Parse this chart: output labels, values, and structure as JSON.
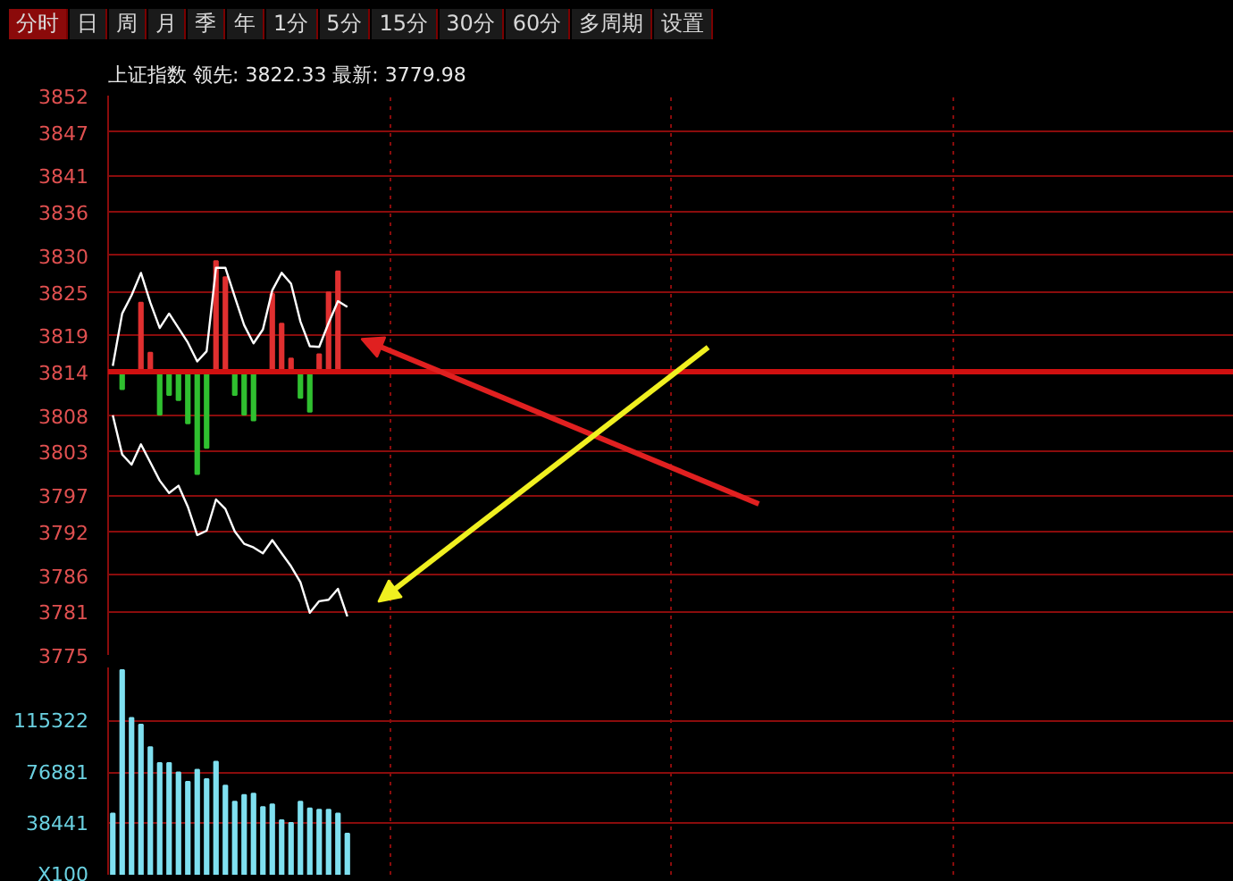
{
  "chart_data": [
    {
      "type": "line",
      "title": "上证指数 领先: 3822.33 最新: 3779.98",
      "annotations": [
        "分时",
        "日",
        "周",
        "月",
        "季",
        "年",
        "1分",
        "5分",
        "15分",
        "30分",
        "60分",
        "多周期",
        "设置"
      ],
      "categories": [
        null,
        null,
        null,
        null,
        null,
        null,
        null,
        null,
        null,
        null,
        null,
        null,
        null,
        null,
        null,
        null,
        null,
        null,
        null,
        null,
        null,
        null,
        null,
        null,
        null,
        null,
        null,
        null,
        null,
        null,
        null,
        null,
        null,
        null,
        null,
        null,
        null,
        null,
        null,
        null,
        null,
        null,
        null,
        null,
        null,
        null,
        null,
        null,
        null,
        null,
        null,
        null,
        null,
        null,
        null,
        null,
        null,
        null,
        null,
        null,
        null,
        null,
        null,
        null,
        null,
        null,
        null,
        null,
        null,
        null,
        null,
        null,
        null,
        null,
        null,
        null,
        null,
        null,
        null,
        null,
        null,
        null,
        null,
        null,
        null,
        null,
        null,
        null,
        null,
        null,
        null,
        null,
        null,
        null,
        null,
        null,
        null,
        null,
        null,
        null,
        null,
        null,
        null,
        null,
        null,
        null,
        null,
        null,
        null,
        null,
        null,
        null,
        null,
        null,
        null,
        null,
        null,
        null,
        null,
        null
      ],
      "ylim": [
        3775,
        3852
      ],
      "yticks": [
        3775,
        3781,
        3786,
        3792,
        3797,
        3803,
        3808,
        3814,
        3819,
        3825,
        3830,
        3836,
        3841,
        3847,
        3852
      ],
      "grid": true,
      "tick_labels": "y",
      "ref_lines": [
        {
          "axis": "y",
          "value": 3814,
          "label": null,
          "color": "#d01010"
        }
      ],
      "series": [
        {
          "type": "bar",
          "base": [
            null,
            3814,
            null,
            3814,
            3814,
            3814,
            3814,
            3814,
            3814,
            3814,
            3814,
            3814,
            3814,
            3814,
            3814,
            3814,
            null,
            3814,
            3814,
            3814,
            3814,
            3814,
            3814,
            3814,
            3814,
            null,
            null,
            null,
            null,
            null,
            null,
            null,
            null,
            null,
            null,
            null,
            null,
            null,
            null,
            null,
            null,
            null,
            null,
            null,
            null,
            null,
            null,
            null,
            null,
            null,
            null,
            null,
            null,
            null,
            null,
            null,
            null,
            null,
            null,
            null,
            null,
            null,
            null,
            null,
            null,
            null,
            null,
            null,
            null,
            null,
            null,
            null,
            null,
            null,
            null,
            null,
            null,
            null,
            null,
            null,
            null,
            null,
            null,
            null,
            null,
            null,
            null,
            null,
            null,
            null,
            null,
            null,
            null,
            null,
            null,
            null,
            null,
            null,
            null,
            null,
            null,
            null,
            null,
            null,
            null,
            null,
            null,
            null,
            null,
            null,
            null,
            null,
            null,
            null,
            null,
            null,
            null,
            null,
            null,
            null
          ],
          "values": [
            null,
            -2.4,
            null,
            9.5,
            2.6,
            -5.9,
            -3.2,
            -3.9,
            -7.1,
            -14.1,
            -10.5,
            15.2,
            13,
            -3.2,
            -5.9,
            -6.7,
            null,
            10.7,
            6.6,
            1.8,
            -3.6,
            -5.5,
            2.4,
            10.9,
            13.8,
            null,
            null,
            null,
            null,
            null,
            null,
            null,
            null,
            null,
            null,
            null,
            null,
            null,
            null,
            null,
            null,
            null,
            null,
            null,
            null,
            null,
            null,
            null,
            null,
            null,
            null,
            null,
            null,
            null,
            null,
            null,
            null,
            null,
            null,
            null,
            null,
            null,
            null,
            null,
            null,
            null,
            null,
            null,
            null,
            null,
            null,
            null,
            null,
            null,
            null,
            null,
            null,
            null,
            null,
            null,
            null,
            null,
            null,
            null,
            null,
            null,
            null,
            null,
            null,
            null,
            null,
            null,
            null,
            null,
            null,
            null,
            null,
            null,
            null,
            null,
            null,
            null,
            null,
            null,
            null,
            null,
            null,
            null,
            null,
            null,
            null,
            null,
            null,
            null,
            null,
            null,
            null,
            null,
            null,
            null
          ],
          "colors": [
            null,
            "#30c030",
            null,
            "#e03030",
            "#e03030",
            "#30c030",
            "#30c030",
            "#30c030",
            "#30c030",
            "#30c030",
            "#30c030",
            "#e03030",
            "#e03030",
            "#30c030",
            "#30c030",
            "#30c030",
            null,
            "#e03030",
            "#e03030",
            "#e03030",
            "#30c030",
            "#30c030",
            "#e03030",
            "#e03030",
            "#e03030",
            null,
            null,
            null,
            null,
            null,
            null,
            null,
            null,
            null,
            null,
            null,
            null,
            null,
            null,
            null,
            null,
            null,
            null,
            null,
            null,
            null,
            null,
            null,
            null,
            null,
            null,
            null,
            null,
            null,
            null,
            null,
            null,
            null,
            null,
            null,
            null,
            null,
            null,
            null,
            null,
            null,
            null,
            null,
            null,
            null,
            null,
            null,
            null,
            null,
            null,
            null,
            null,
            null,
            null,
            null,
            null,
            null,
            null,
            null,
            null,
            null,
            null,
            null,
            null,
            null,
            null,
            null,
            null,
            null,
            null,
            null,
            null,
            null,
            null,
            null,
            null,
            null,
            null,
            null,
            null,
            null,
            null,
            null,
            null,
            null,
            null,
            null,
            null,
            null,
            null,
            null,
            null,
            null,
            null,
            null
          ]
        },
        {
          "type": "line",
          "color": "#ffffff",
          "values": [
            3814.8,
            3822,
            3824.5,
            3827.6,
            3823.5,
            3820,
            3822,
            3820,
            3818,
            3815.4,
            3816.8,
            3828.3,
            3828.3,
            3824.3,
            3820.4,
            3817.9,
            3819.8,
            3825.2,
            3827.6,
            3826.1,
            3820.9,
            3817.5,
            3817.4,
            3820.7,
            3823.7,
            3822.9,
            null,
            null,
            null,
            null,
            null,
            null,
            null,
            null,
            null,
            null,
            null,
            null,
            null,
            null,
            null,
            null,
            null,
            null,
            null,
            null,
            null,
            null,
            null,
            null,
            null,
            null,
            null,
            null,
            null,
            null,
            null,
            null,
            null,
            null,
            null,
            null,
            null,
            null,
            null,
            null,
            null,
            null,
            null,
            null,
            null,
            null,
            null,
            null,
            null,
            null,
            null,
            null,
            null,
            null,
            null,
            null,
            null,
            null,
            null,
            null,
            null,
            null,
            null,
            null,
            null,
            null,
            null,
            null,
            null,
            null,
            null,
            null,
            null,
            null,
            null,
            null,
            null,
            null,
            null,
            null,
            null,
            null,
            null,
            null,
            null,
            null,
            null,
            null,
            null,
            null,
            null,
            null,
            null,
            null
          ]
        },
        {
          "type": "line",
          "color": "#ffffff",
          "values": [
            3808,
            3802.6,
            3801.2,
            3804,
            3801.5,
            3799,
            3797.3,
            3798.3,
            3795.4,
            3791.5,
            3792.1,
            3796.4,
            3795.1,
            3792,
            3790.3,
            3789.8,
            3789,
            3790.8,
            3789,
            3787.2,
            3785,
            3780.8,
            3782.4,
            3782.6,
            3784.1,
            3780.3,
            null,
            null,
            null,
            null,
            null,
            null,
            null,
            null,
            null,
            null,
            null,
            null,
            null,
            null,
            null,
            null,
            null,
            null,
            null,
            null,
            null,
            null,
            null,
            null,
            null,
            null,
            null,
            null,
            null,
            null,
            null,
            null,
            null,
            null,
            null,
            null,
            null,
            null,
            null,
            null,
            null,
            null,
            null,
            null,
            null,
            null,
            null,
            null,
            null,
            null,
            null,
            null,
            null,
            null,
            null,
            null,
            null,
            null,
            null,
            null,
            null,
            null,
            null,
            null,
            null,
            null,
            null,
            null,
            null,
            null,
            null,
            null,
            null,
            null,
            null,
            null,
            null,
            null,
            null,
            null,
            null,
            null,
            null,
            null,
            null,
            null,
            null,
            null,
            null,
            null,
            null,
            null,
            null,
            null
          ]
        }
      ]
    },
    {
      "type": "bar",
      "categories": [
        null,
        null,
        null,
        null,
        null,
        null,
        null,
        null,
        null,
        null,
        null,
        null,
        null,
        null,
        null,
        null,
        null,
        null,
        null,
        null,
        null,
        null,
        null,
        null,
        null,
        null,
        null,
        null,
        null,
        null,
        null,
        null,
        null,
        null,
        null,
        null,
        null,
        null,
        null,
        null,
        null,
        null,
        null,
        null,
        null,
        null,
        null,
        null,
        null,
        null,
        null,
        null,
        null,
        null,
        null,
        null,
        null,
        null,
        null,
        null,
        null,
        null,
        null,
        null,
        null,
        null,
        null,
        null,
        null,
        null,
        null,
        null,
        null,
        null,
        null,
        null,
        null,
        null,
        null,
        null,
        null,
        null,
        null,
        null,
        null,
        null,
        null,
        null,
        null,
        null,
        null,
        null,
        null,
        null,
        null,
        null,
        null,
        null,
        null,
        null,
        null,
        null,
        null,
        null,
        null,
        null,
        null,
        null,
        null,
        null,
        null,
        null,
        null,
        null,
        null,
        null,
        null,
        null,
        null,
        null
      ],
      "ylim": [
        0,
        156000
      ],
      "yticks": [
        {
          "value": 0,
          "label": "X100"
        },
        38441,
        76881,
        115322
      ],
      "grid": true,
      "tick_labels": "y",
      "color": "#7fe0f0",
      "values": [
        46000,
        154000,
        118000,
        113000,
        96000,
        84000,
        84000,
        77000,
        70000,
        79000,
        72000,
        85000,
        67000,
        55000,
        60000,
        61000,
        51000,
        53000,
        41000,
        39000,
        55000,
        50000,
        49000,
        49000,
        46000,
        31000,
        null,
        null,
        null,
        null,
        null,
        null,
        null,
        null,
        null,
        null,
        null,
        null,
        null,
        null,
        null,
        null,
        null,
        null,
        null,
        null,
        null,
        null,
        null,
        null,
        null,
        null,
        null,
        null,
        null,
        null,
        null,
        null,
        null,
        null,
        null,
        null,
        null,
        null,
        null,
        null,
        null,
        null,
        null,
        null,
        null,
        null,
        null,
        null,
        null,
        null,
        null,
        null,
        null,
        null,
        null,
        null,
        null,
        null,
        null,
        null,
        null,
        null,
        null,
        null,
        null,
        null,
        null,
        null,
        null,
        null,
        null,
        null,
        null,
        null,
        null,
        null,
        null,
        null,
        null,
        null,
        null,
        null,
        null,
        null,
        null,
        null,
        null,
        null,
        null,
        null,
        null,
        null,
        null,
        null
      ]
    }
  ]
}
